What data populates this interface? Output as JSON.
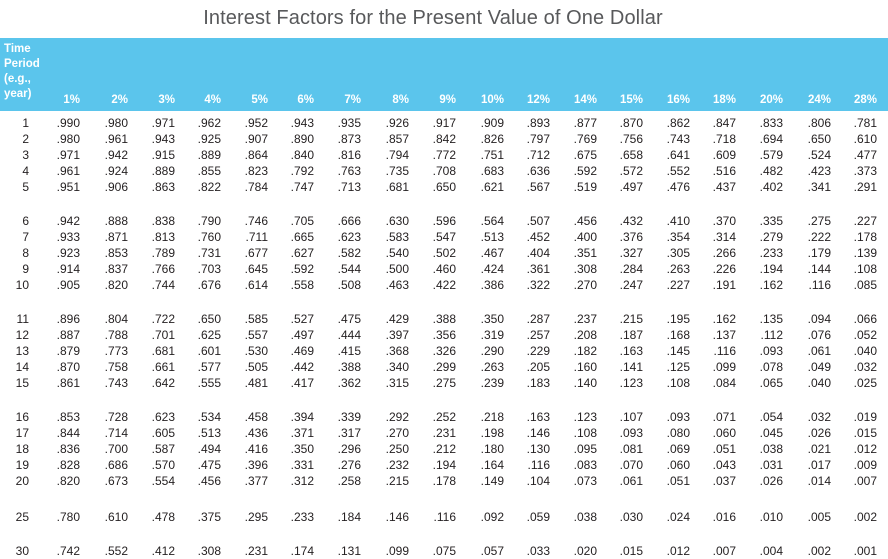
{
  "title": "Interest Factors for the Present Value of One Dollar",
  "table": {
    "period_header": [
      "Time",
      "Period",
      "(e.g.,",
      "year)"
    ],
    "rates": [
      "1%",
      "2%",
      "3%",
      "4%",
      "5%",
      "6%",
      "7%",
      "8%",
      "9%",
      "10%",
      "12%",
      "14%",
      "15%",
      "16%",
      "18%",
      "20%",
      "24%",
      "28%"
    ],
    "rows": [
      {
        "period": "1",
        "values": [
          ".990",
          ".980",
          ".971",
          ".962",
          ".952",
          ".943",
          ".935",
          ".926",
          ".917",
          ".909",
          ".893",
          ".877",
          ".870",
          ".862",
          ".847",
          ".833",
          ".806",
          ".781"
        ]
      },
      {
        "period": "2",
        "values": [
          ".980",
          ".961",
          ".943",
          ".925",
          ".907",
          ".890",
          ".873",
          ".857",
          ".842",
          ".826",
          ".797",
          ".769",
          ".756",
          ".743",
          ".718",
          ".694",
          ".650",
          ".610"
        ]
      },
      {
        "period": "3",
        "values": [
          ".971",
          ".942",
          ".915",
          ".889",
          ".864",
          ".840",
          ".816",
          ".794",
          ".772",
          ".751",
          ".712",
          ".675",
          ".658",
          ".641",
          ".609",
          ".579",
          ".524",
          ".477"
        ]
      },
      {
        "period": "4",
        "values": [
          ".961",
          ".924",
          ".889",
          ".855",
          ".823",
          ".792",
          ".763",
          ".735",
          ".708",
          ".683",
          ".636",
          ".592",
          ".572",
          ".552",
          ".516",
          ".482",
          ".423",
          ".373"
        ]
      },
      {
        "period": "5",
        "values": [
          ".951",
          ".906",
          ".863",
          ".822",
          ".784",
          ".747",
          ".713",
          ".681",
          ".650",
          ".621",
          ".567",
          ".519",
          ".497",
          ".476",
          ".437",
          ".402",
          ".341",
          ".291"
        ]
      },
      {
        "period": "6",
        "values": [
          ".942",
          ".888",
          ".838",
          ".790",
          ".746",
          ".705",
          ".666",
          ".630",
          ".596",
          ".564",
          ".507",
          ".456",
          ".432",
          ".410",
          ".370",
          ".335",
          ".275",
          ".227"
        ]
      },
      {
        "period": "7",
        "values": [
          ".933",
          ".871",
          ".813",
          ".760",
          ".711",
          ".665",
          ".623",
          ".583",
          ".547",
          ".513",
          ".452",
          ".400",
          ".376",
          ".354",
          ".314",
          ".279",
          ".222",
          ".178"
        ]
      },
      {
        "period": "8",
        "values": [
          ".923",
          ".853",
          ".789",
          ".731",
          ".677",
          ".627",
          ".582",
          ".540",
          ".502",
          ".467",
          ".404",
          ".351",
          ".327",
          ".305",
          ".266",
          ".233",
          ".179",
          ".139"
        ]
      },
      {
        "period": "9",
        "values": [
          ".914",
          ".837",
          ".766",
          ".703",
          ".645",
          ".592",
          ".544",
          ".500",
          ".460",
          ".424",
          ".361",
          ".308",
          ".284",
          ".263",
          ".226",
          ".194",
          ".144",
          ".108"
        ]
      },
      {
        "period": "10",
        "values": [
          ".905",
          ".820",
          ".744",
          ".676",
          ".614",
          ".558",
          ".508",
          ".463",
          ".422",
          ".386",
          ".322",
          ".270",
          ".247",
          ".227",
          ".191",
          ".162",
          ".116",
          ".085"
        ]
      },
      {
        "period": "11",
        "values": [
          ".896",
          ".804",
          ".722",
          ".650",
          ".585",
          ".527",
          ".475",
          ".429",
          ".388",
          ".350",
          ".287",
          ".237",
          ".215",
          ".195",
          ".162",
          ".135",
          ".094",
          ".066"
        ]
      },
      {
        "period": "12",
        "values": [
          ".887",
          ".788",
          ".701",
          ".625",
          ".557",
          ".497",
          ".444",
          ".397",
          ".356",
          ".319",
          ".257",
          ".208",
          ".187",
          ".168",
          ".137",
          ".112",
          ".076",
          ".052"
        ]
      },
      {
        "period": "13",
        "values": [
          ".879",
          ".773",
          ".681",
          ".601",
          ".530",
          ".469",
          ".415",
          ".368",
          ".326",
          ".290",
          ".229",
          ".182",
          ".163",
          ".145",
          ".116",
          ".093",
          ".061",
          ".040"
        ]
      },
      {
        "period": "14",
        "values": [
          ".870",
          ".758",
          ".661",
          ".577",
          ".505",
          ".442",
          ".388",
          ".340",
          ".299",
          ".263",
          ".205",
          ".160",
          ".141",
          ".125",
          ".099",
          ".078",
          ".049",
          ".032"
        ]
      },
      {
        "period": "15",
        "values": [
          ".861",
          ".743",
          ".642",
          ".555",
          ".481",
          ".417",
          ".362",
          ".315",
          ".275",
          ".239",
          ".183",
          ".140",
          ".123",
          ".108",
          ".084",
          ".065",
          ".040",
          ".025"
        ]
      },
      {
        "period": "16",
        "values": [
          ".853",
          ".728",
          ".623",
          ".534",
          ".458",
          ".394",
          ".339",
          ".292",
          ".252",
          ".218",
          ".163",
          ".123",
          ".107",
          ".093",
          ".071",
          ".054",
          ".032",
          ".019"
        ]
      },
      {
        "period": "17",
        "values": [
          ".844",
          ".714",
          ".605",
          ".513",
          ".436",
          ".371",
          ".317",
          ".270",
          ".231",
          ".198",
          ".146",
          ".108",
          ".093",
          ".080",
          ".060",
          ".045",
          ".026",
          ".015"
        ]
      },
      {
        "period": "18",
        "values": [
          ".836",
          ".700",
          ".587",
          ".494",
          ".416",
          ".350",
          ".296",
          ".250",
          ".212",
          ".180",
          ".130",
          ".095",
          ".081",
          ".069",
          ".051",
          ".038",
          ".021",
          ".012"
        ]
      },
      {
        "period": "19",
        "values": [
          ".828",
          ".686",
          ".570",
          ".475",
          ".396",
          ".331",
          ".276",
          ".232",
          ".194",
          ".164",
          ".116",
          ".083",
          ".070",
          ".060",
          ".043",
          ".031",
          ".017",
          ".009"
        ]
      },
      {
        "period": "20",
        "values": [
          ".820",
          ".673",
          ".554",
          ".456",
          ".377",
          ".312",
          ".258",
          ".215",
          ".178",
          ".149",
          ".104",
          ".073",
          ".061",
          ".051",
          ".037",
          ".026",
          ".014",
          ".007"
        ]
      },
      {
        "period": "25",
        "values": [
          ".780",
          ".610",
          ".478",
          ".375",
          ".295",
          ".233",
          ".184",
          ".146",
          ".116",
          ".092",
          ".059",
          ".038",
          ".030",
          ".024",
          ".016",
          ".010",
          ".005",
          ".002"
        ]
      },
      {
        "period": "30",
        "values": [
          ".742",
          ".552",
          ".412",
          ".308",
          ".231",
          ".174",
          ".131",
          ".099",
          ".075",
          ".057",
          ".033",
          ".020",
          ".015",
          ".012",
          ".007",
          ".004",
          ".002",
          ".001"
        ]
      }
    ]
  },
  "colors": {
    "header_bg": "#5bc5ec",
    "header_text": "#ffffff",
    "title_text": "#58595b",
    "body_text": "#231f20"
  }
}
